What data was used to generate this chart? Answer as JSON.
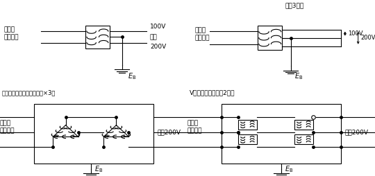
{
  "bg_color": "#ffffff",
  "line_color": "#000000",
  "lw": 0.8,
  "tl_label": "高圧・\n特別高圧",
  "tl_v1": "100V",
  "tl_v2": "又は",
  "tl_v3": "200V",
  "tl_eb": "$E_{\\mathrm{B}}$",
  "tr_title": "単相3線式",
  "tr_label": "高圧・\n特別高圧",
  "tr_v1": "100V",
  "tr_v2": "200V",
  "tr_eb": "$E_{\\mathrm{B}}$",
  "bl_title": "三相変圧器又は単相変圧器×3台",
  "bl_label": "高圧・\n特別高圧",
  "bl_sec": "三相200V",
  "bl_eb": "$E_{\\mathrm{B}}$",
  "br_title": "V結線（単相変圧器2台）",
  "br_label": "高圧・\n特別高圧",
  "br_sec": "三相200V",
  "br_eb": "$E_{\\mathrm{B}}$"
}
